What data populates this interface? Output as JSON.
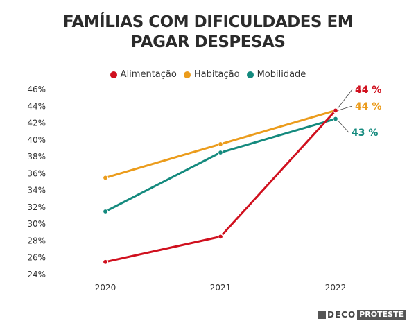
{
  "chart_data": {
    "type": "line",
    "title": "FAMÍLIAS COM DIFICULDADES EM PAGAR DESPESAS",
    "title_lines": [
      "FAMÍLIAS COM DIFICULDADES EM",
      "PAGAR DESPESAS"
    ],
    "x": [
      "2020",
      "2021",
      "2022"
    ],
    "ylim": [
      24,
      46
    ],
    "yticks": [
      "46%",
      "44%",
      "42%",
      "40%",
      "38%",
      "36%",
      "34%",
      "32%",
      "30%",
      "28%",
      "26%",
      "24%"
    ],
    "ytick_values": [
      46,
      44,
      42,
      40,
      38,
      36,
      34,
      32,
      30,
      28,
      26,
      24
    ],
    "grid": false,
    "legend_position": "top-center",
    "series": [
      {
        "name": "Alimentação",
        "color": "#d0101e",
        "values": [
          25.5,
          28.5,
          43.5
        ],
        "end_label": "44 %"
      },
      {
        "name": "Habitação",
        "color": "#eb9c1c",
        "values": [
          35.5,
          39.5,
          43.5
        ],
        "end_label": "44 %"
      },
      {
        "name": "Mobilidade",
        "color": "#148a7e",
        "values": [
          31.5,
          38.5,
          42.5
        ],
        "end_label": "43 %"
      }
    ]
  },
  "logo": {
    "part1": "DECO",
    "part2": "PROTESTE"
  }
}
